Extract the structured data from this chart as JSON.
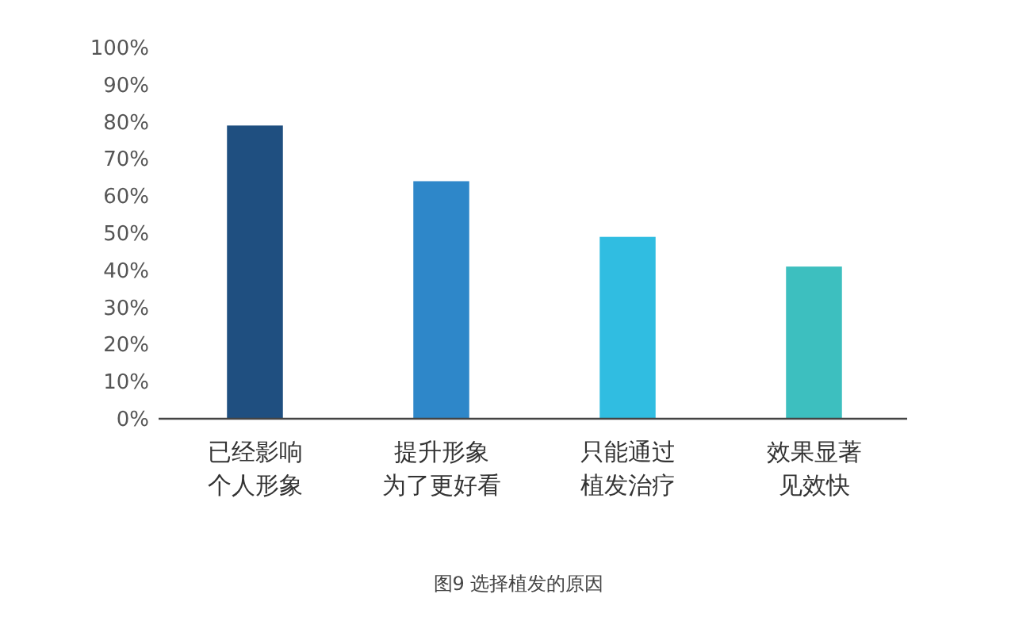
{
  "chart_data": {
    "type": "bar",
    "title": "图9  选择植发的原因",
    "categories": [
      "已经影响个人形象",
      "提升形象为了更好看",
      "只能通过植发治疗",
      "效果显著见效快"
    ],
    "values": [
      79,
      64,
      49,
      41
    ],
    "colors": [
      "#1f4f80",
      "#2e87c9",
      "#30bde1",
      "#3dbfbf"
    ],
    "ylim": [
      0,
      100
    ],
    "yticks": [
      {
        "value": 0,
        "label": "0%"
      },
      {
        "value": 10,
        "label": "10%"
      },
      {
        "value": 20,
        "label": "20%"
      },
      {
        "value": 30,
        "label": "30%"
      },
      {
        "value": 40,
        "label": "40%"
      },
      {
        "value": 50,
        "label": "50%"
      },
      {
        "value": 60,
        "label": "60%"
      },
      {
        "value": 70,
        "label": "70%"
      },
      {
        "value": 80,
        "label": "80%"
      },
      {
        "value": 90,
        "label": "90%"
      },
      {
        "value": 100,
        "label": "100%"
      }
    ],
    "grid": false
  }
}
